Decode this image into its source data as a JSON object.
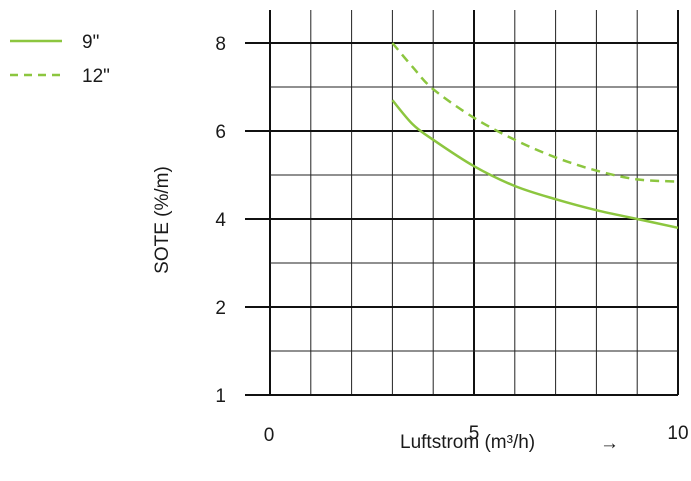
{
  "chart_data": {
    "type": "line",
    "xlabel": "Luftstrom (m³/h)",
    "xlabel_arrow": "→",
    "ylabel": "SOTE (%/m)",
    "xlim": [
      0,
      10
    ],
    "x_ticks": [
      {
        "value": 0,
        "label": "0"
      },
      {
        "value": 5,
        "label": "5"
      },
      {
        "value": 10,
        "label": "10"
      }
    ],
    "y_ticks": [
      {
        "value": 1,
        "label": "1"
      },
      {
        "value": 2,
        "label": "2"
      },
      {
        "value": 4,
        "label": "4"
      },
      {
        "value": 6,
        "label": "6"
      },
      {
        "value": 8,
        "label": "8"
      }
    ],
    "grid": true,
    "legend_position": "top-left",
    "series": [
      {
        "name": "9\"",
        "style": "solid",
        "color": "#8cc63f",
        "x": [
          3,
          3.5,
          4,
          5,
          6,
          7,
          8,
          9,
          10
        ],
        "y": [
          6.7,
          6.15,
          5.8,
          5.2,
          4.75,
          4.45,
          4.2,
          4.0,
          3.8
        ]
      },
      {
        "name": "12\"",
        "style": "dashed",
        "color": "#8cc63f",
        "x": [
          3,
          3.5,
          4,
          5,
          6,
          7,
          8,
          9,
          10
        ],
        "y": [
          8.0,
          7.45,
          6.95,
          6.3,
          5.8,
          5.4,
          5.1,
          4.9,
          4.85
        ]
      }
    ]
  }
}
